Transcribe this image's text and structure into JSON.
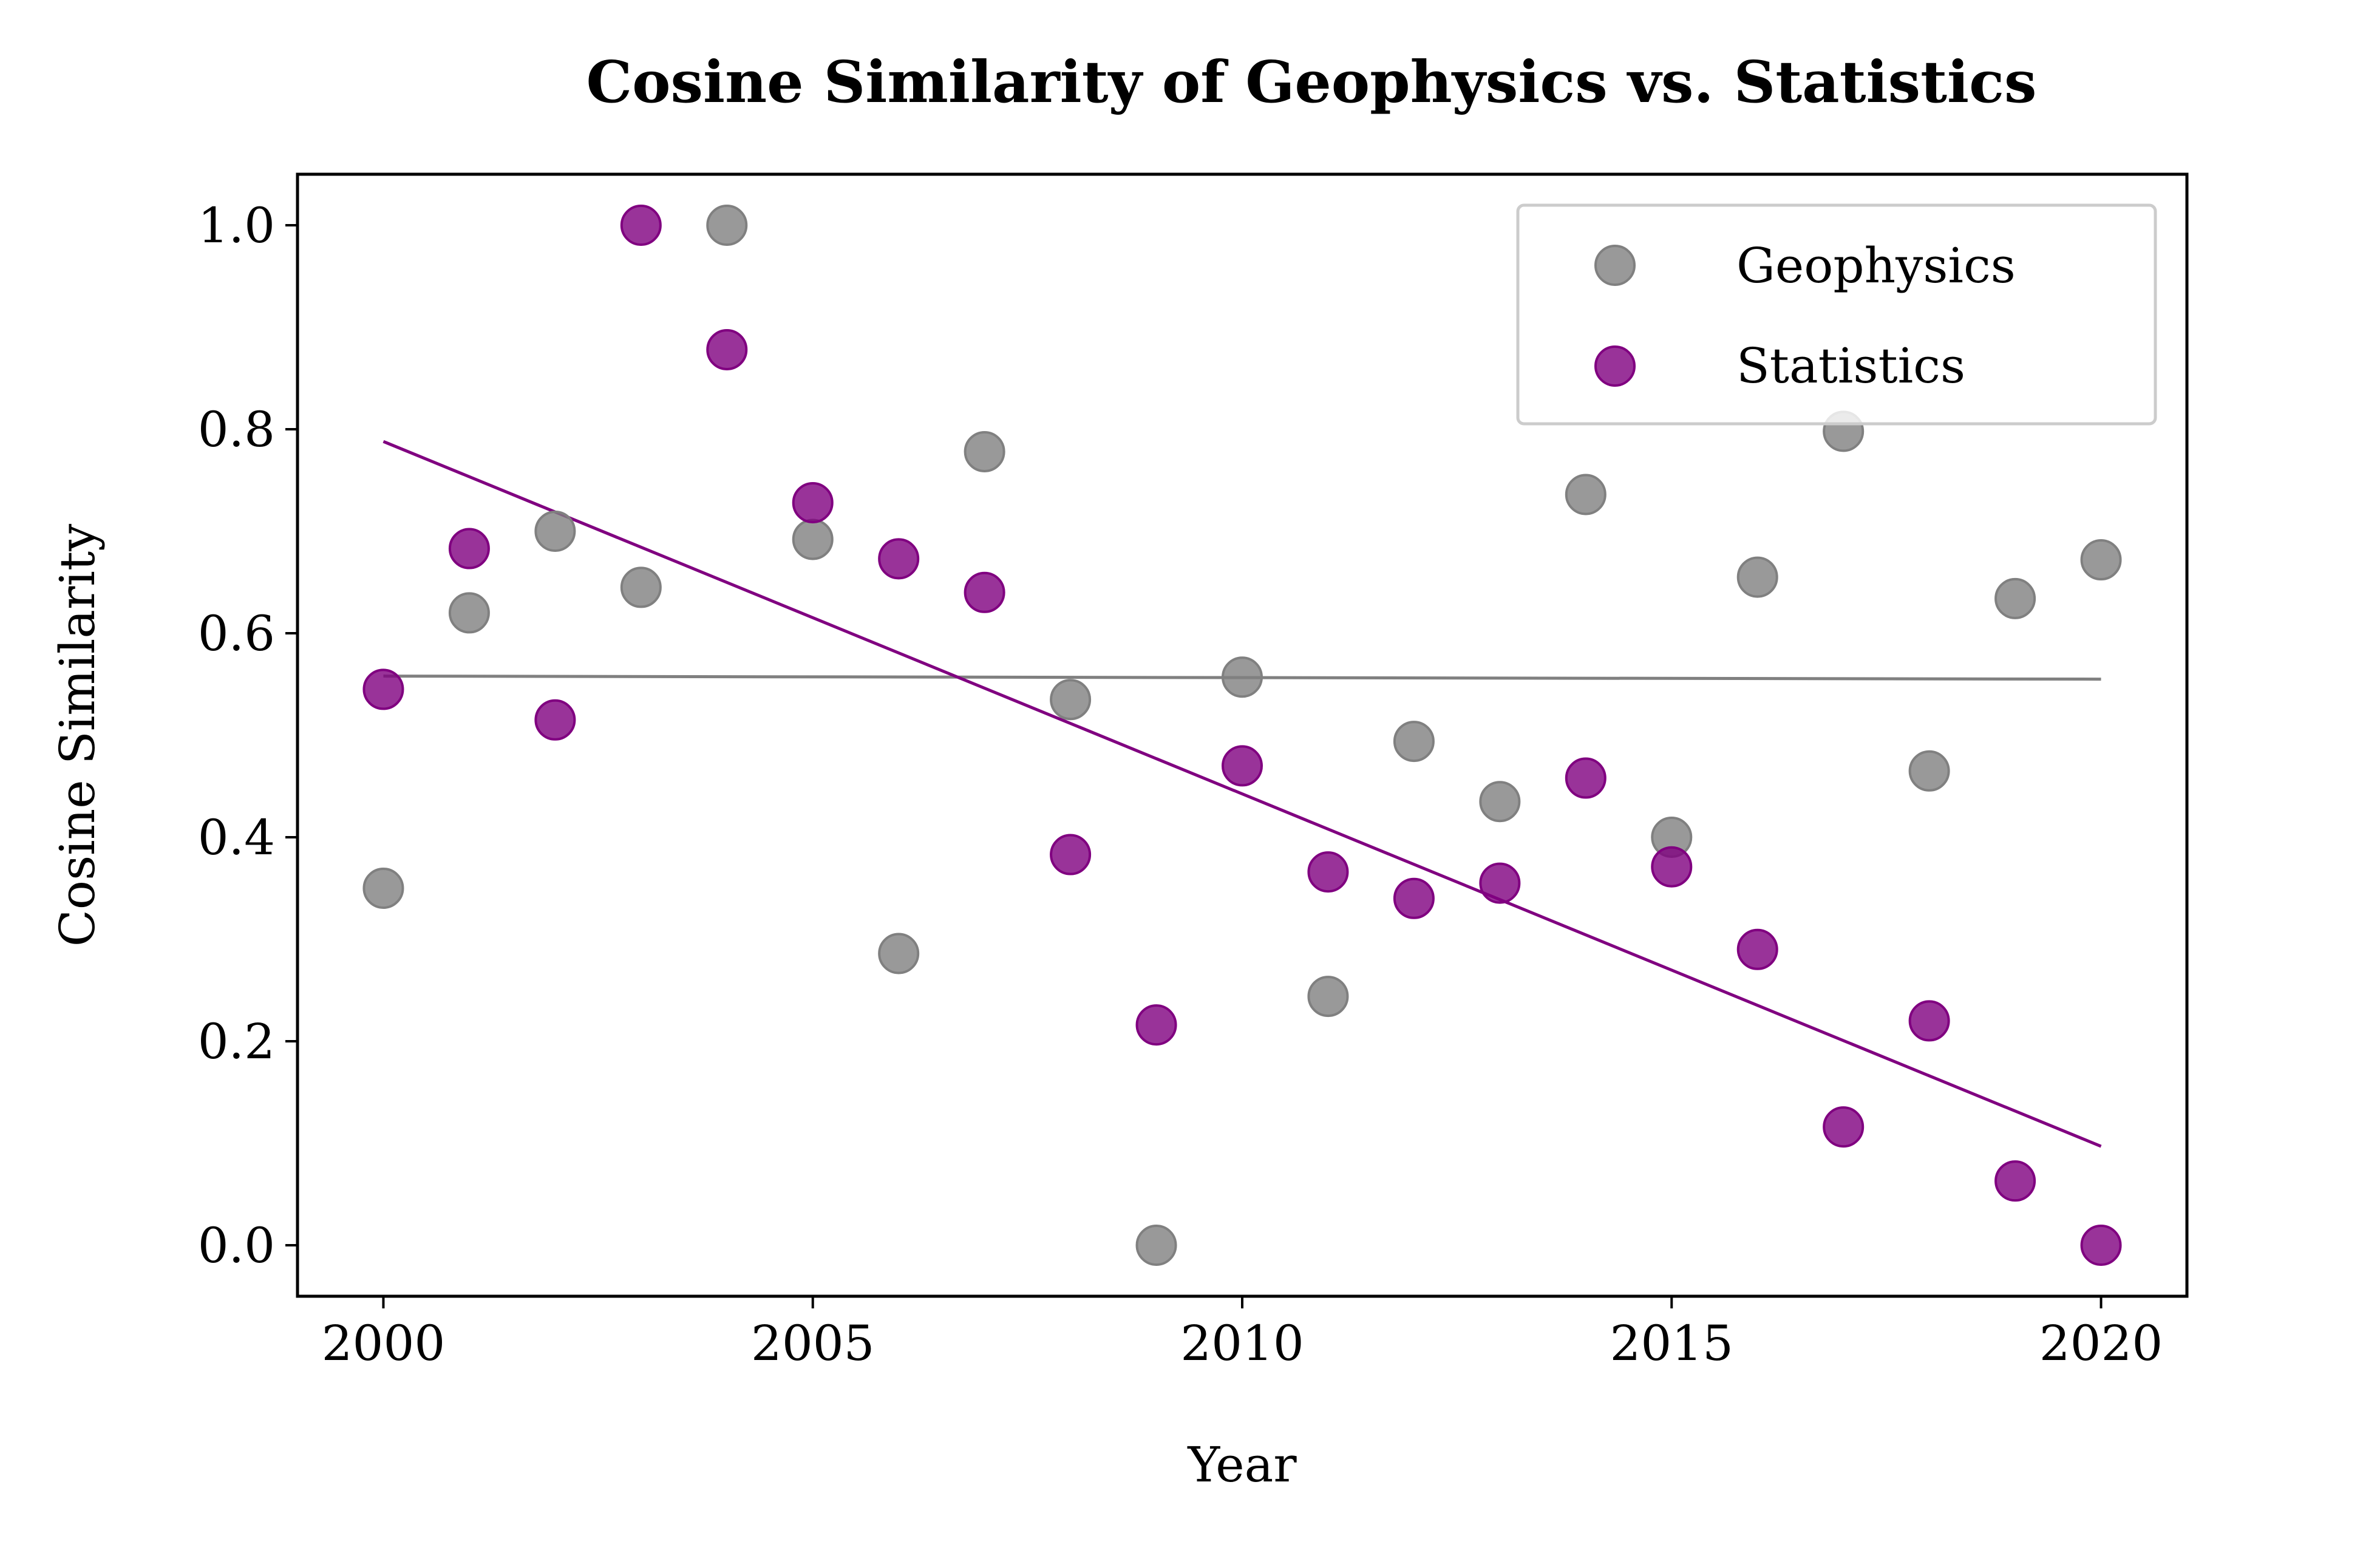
{
  "chart_data": {
    "type": "scatter",
    "title": "Cosine Similarity of Geophysics vs. Statistics",
    "xlabel": "Year",
    "ylabel": "Cosine Similarity",
    "xlim": [
      1999,
      2021
    ],
    "ylim": [
      -0.05,
      1.05
    ],
    "xticks": [
      2000,
      2005,
      2010,
      2015,
      2020
    ],
    "xtick_labels": [
      "2000",
      "2005",
      "2010",
      "2015",
      "2020"
    ],
    "yticks": [
      0.0,
      0.2,
      0.4,
      0.6,
      0.8,
      1.0
    ],
    "ytick_labels": [
      "0.0",
      "0.2",
      "0.4",
      "0.6",
      "0.8",
      "1.0"
    ],
    "grid": false,
    "legend_position": "top-right",
    "series": [
      {
        "name": "Geophysics",
        "color": "#808080",
        "x": [
          2000,
          2001,
          2002,
          2003,
          2004,
          2005,
          2006,
          2007,
          2008,
          2009,
          2010,
          2011,
          2012,
          2013,
          2014,
          2015,
          2016,
          2017,
          2018,
          2019,
          2020
        ],
        "y": [
          0.35,
          0.62,
          0.7,
          0.645,
          1.0,
          0.692,
          0.286,
          0.778,
          0.535,
          0.0,
          0.557,
          0.244,
          0.494,
          0.435,
          0.736,
          0.4,
          0.655,
          0.798,
          0.465,
          0.634,
          0.672
        ],
        "trendline": {
          "x": [
            2000,
            2020
          ],
          "y": [
            0.558,
            0.555
          ]
        }
      },
      {
        "name": "Statistics",
        "color": "#800080",
        "x": [
          2000,
          2001,
          2002,
          2003,
          2004,
          2005,
          2006,
          2007,
          2008,
          2009,
          2010,
          2011,
          2012,
          2013,
          2014,
          2015,
          2016,
          2017,
          2018,
          2019,
          2020
        ],
        "y": [
          0.545,
          0.683,
          0.515,
          1.0,
          0.878,
          0.728,
          0.673,
          0.64,
          0.383,
          0.216,
          0.47,
          0.366,
          0.34,
          0.355,
          0.458,
          0.371,
          0.29,
          0.116,
          0.22,
          0.063,
          0.0
        ],
        "trendline": {
          "x": [
            2000,
            2020
          ],
          "y": [
            0.788,
            0.097
          ]
        }
      }
    ]
  }
}
